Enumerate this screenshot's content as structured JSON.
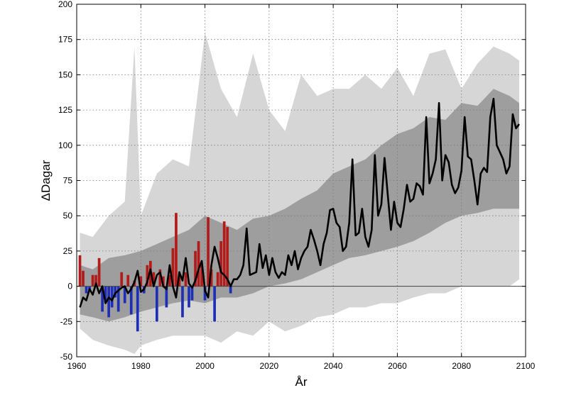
{
  "chart_data": {
    "type": "line",
    "title": "",
    "xlabel": "År",
    "ylabel": "ΔDagar",
    "xlim": [
      1960,
      2100
    ],
    "ylim": [
      -50,
      200
    ],
    "xticks": [
      "1960",
      "1980",
      "2000",
      "2020",
      "2040",
      "2060",
      "2080",
      "2100"
    ],
    "yticks": [
      "-50",
      "-25",
      "0",
      "25",
      "50",
      "75",
      "100",
      "125",
      "150",
      "175",
      "200"
    ],
    "grid": true,
    "colors": {
      "outer_band": "#d6d6d6",
      "inner_band": "#9e9e9e",
      "median_line": "#000000",
      "positive_bar": "#b31b1b",
      "negative_bar": "#1f2fb5",
      "zero_line": "#444444"
    },
    "outer_band": {
      "x": [
        1961,
        1965,
        1970,
        1975,
        1978,
        1980,
        1985,
        1990,
        1995,
        2000,
        2005,
        2010,
        2015,
        2020,
        2025,
        2030,
        2035,
        2040,
        2045,
        2050,
        2055,
        2060,
        2065,
        2070,
        2075,
        2080,
        2085,
        2090,
        2095,
        2098
      ],
      "upper": [
        38,
        35,
        50,
        60,
        170,
        50,
        80,
        90,
        85,
        180,
        140,
        120,
        165,
        125,
        110,
        150,
        135,
        140,
        140,
        150,
        140,
        155,
        135,
        165,
        168,
        140,
        158,
        170,
        165,
        160
      ],
      "lower": [
        -30,
        -38,
        -42,
        -45,
        -48,
        -42,
        -38,
        -35,
        -35,
        -35,
        -40,
        -32,
        -35,
        -25,
        -32,
        -28,
        -22,
        -20,
        -15,
        -15,
        -12,
        -12,
        -8,
        -5,
        -5,
        0,
        0,
        0,
        0,
        5
      ]
    },
    "inner_band": {
      "x": [
        1961,
        1965,
        1970,
        1975,
        1980,
        1985,
        1990,
        1995,
        2000,
        2005,
        2010,
        2015,
        2020,
        2025,
        2030,
        2035,
        2040,
        2045,
        2050,
        2055,
        2060,
        2065,
        2070,
        2075,
        2080,
        2085,
        2090,
        2095,
        2098
      ],
      "upper": [
        15,
        12,
        20,
        22,
        25,
        30,
        35,
        40,
        50,
        45,
        40,
        48,
        50,
        55,
        62,
        68,
        80,
        85,
        90,
        100,
        108,
        112,
        120,
        118,
        130,
        128,
        140,
        135,
        130
      ],
      "lower": [
        -20,
        -22,
        -25,
        -22,
        -18,
        -15,
        -12,
        -10,
        -12,
        -8,
        -8,
        -5,
        0,
        2,
        5,
        10,
        15,
        20,
        22,
        25,
        28,
        32,
        38,
        45,
        50,
        52,
        55,
        55,
        55
      ]
    },
    "median": {
      "name": "",
      "x": [
        1961,
        1962,
        1963,
        1964,
        1965,
        1966,
        1967,
        1968,
        1969,
        1970,
        1971,
        1972,
        1973,
        1974,
        1975,
        1976,
        1977,
        1978,
        1979,
        1980,
        1981,
        1982,
        1983,
        1984,
        1985,
        1986,
        1987,
        1988,
        1989,
        1990,
        1991,
        1992,
        1993,
        1994,
        1995,
        1996,
        1997,
        1998,
        1999,
        2000,
        2001,
        2002,
        2003,
        2004,
        2005,
        2006,
        2007,
        2008,
        2009,
        2010,
        2011,
        2012,
        2013,
        2014,
        2015,
        2016,
        2017,
        2018,
        2019,
        2020,
        2021,
        2022,
        2023,
        2024,
        2025,
        2026,
        2027,
        2028,
        2029,
        2030,
        2031,
        2032,
        2033,
        2034,
        2035,
        2036,
        2037,
        2038,
        2039,
        2040,
        2041,
        2042,
        2043,
        2044,
        2045,
        2046,
        2047,
        2048,
        2049,
        2050,
        2051,
        2052,
        2053,
        2054,
        2055,
        2056,
        2057,
        2058,
        2059,
        2060,
        2061,
        2062,
        2063,
        2064,
        2065,
        2066,
        2067,
        2068,
        2069,
        2070,
        2071,
        2072,
        2073,
        2074,
        2075,
        2076,
        2077,
        2078,
        2079,
        2080,
        2081,
        2082,
        2083,
        2084,
        2085,
        2086,
        2087,
        2088,
        2089,
        2090,
        2091,
        2092,
        2093,
        2094,
        2095,
        2096,
        2097,
        2098
      ],
      "y": [
        -15,
        -8,
        -10,
        -2,
        -6,
        2,
        -5,
        0,
        -12,
        -8,
        -10,
        -5,
        -3,
        -1,
        0,
        -5,
        -2,
        3,
        11,
        -4,
        -2,
        3,
        12,
        0,
        8,
        10,
        0,
        -2,
        15,
        0,
        -8,
        10,
        4,
        20,
        2,
        -1,
        4,
        12,
        18,
        -3,
        -8,
        15,
        28,
        20,
        10,
        8,
        5,
        0,
        5,
        5,
        8,
        15,
        41,
        8,
        9,
        10,
        30,
        13,
        22,
        8,
        20,
        10,
        6,
        10,
        8,
        22,
        15,
        25,
        12,
        20,
        25,
        28,
        40,
        33,
        25,
        15,
        30,
        38,
        54,
        55,
        45,
        42,
        25,
        28,
        45,
        90,
        36,
        38,
        55,
        35,
        28,
        40,
        93,
        50,
        58,
        91,
        65,
        40,
        60,
        45,
        42,
        55,
        72,
        60,
        62,
        73,
        71,
        65,
        120,
        73,
        80,
        90,
        130,
        75,
        93,
        88,
        72,
        66,
        70,
        82,
        120,
        92,
        90,
        75,
        58,
        80,
        84,
        81,
        120,
        133,
        100,
        95,
        90,
        80,
        85,
        122,
        112,
        115
      ]
    },
    "observed_bars": {
      "x": [
        1961,
        1962,
        1963,
        1964,
        1965,
        1966,
        1967,
        1968,
        1969,
        1970,
        1971,
        1972,
        1973,
        1974,
        1975,
        1976,
        1977,
        1978,
        1979,
        1980,
        1981,
        1982,
        1983,
        1984,
        1985,
        1986,
        1987,
        1988,
        1989,
        1990,
        1991,
        1992,
        1993,
        1994,
        1995,
        1996,
        1997,
        1998,
        1999,
        2000,
        2001,
        2002,
        2003,
        2004,
        2005,
        2006,
        2007,
        2008
      ],
      "y": [
        22,
        11,
        -5,
        -3,
        8,
        8,
        20,
        -18,
        -12,
        -22,
        -15,
        -8,
        -18,
        10,
        -12,
        8,
        -20,
        4,
        -32,
        7,
        -5,
        15,
        18,
        10,
        -25,
        12,
        7,
        -15,
        8,
        27,
        52,
        7,
        -22,
        10,
        -15,
        -10,
        25,
        32,
        15,
        -10,
        49,
        12,
        -25,
        10,
        32,
        46,
        42,
        -5
      ]
    }
  }
}
